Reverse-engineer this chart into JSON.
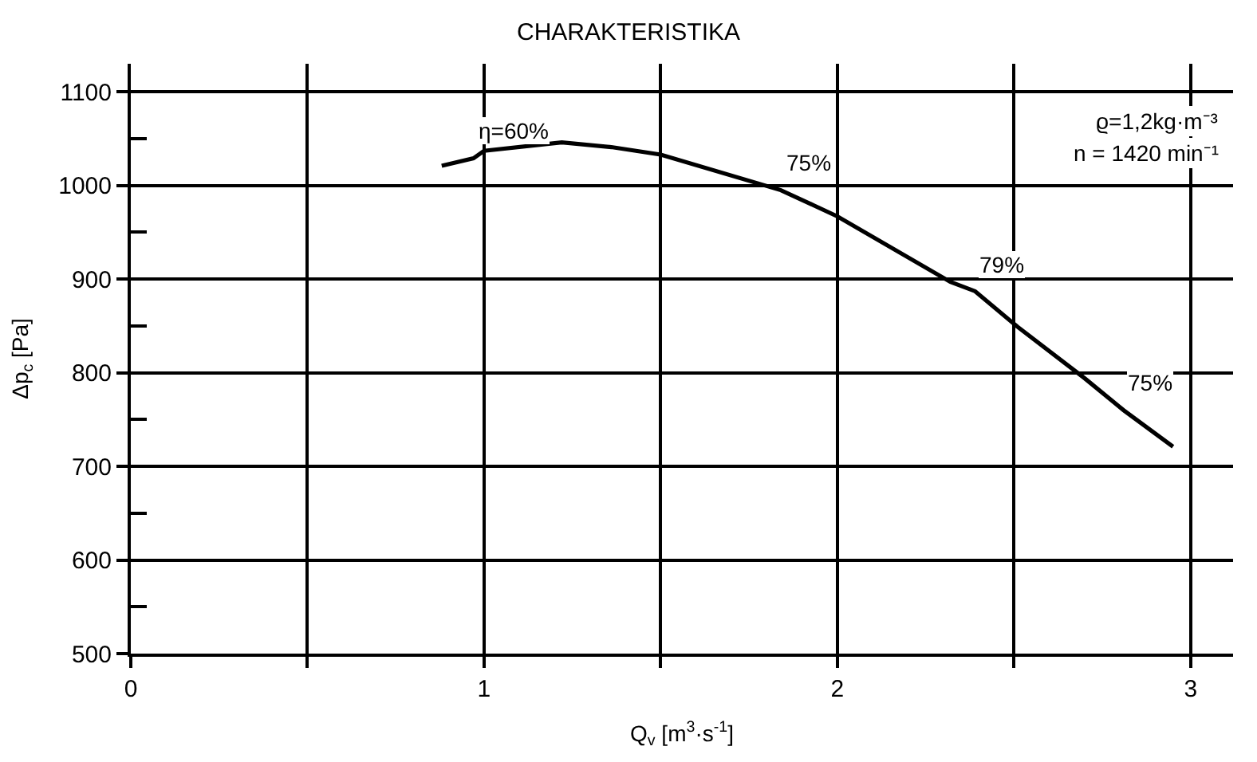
{
  "chart_data": {
    "type": "line",
    "title": "CHARAKTERISTIKA",
    "xlabel": "Q$_{v}$ [m$^{3}$·s$^{-1}$]",
    "ylabel": "Δp$_{c}$ [Pa]",
    "x": [
      0.88,
      0.97,
      1.0,
      1.22,
      1.36,
      1.5,
      1.84,
      2.0,
      2.32,
      2.39,
      2.51,
      2.7,
      2.81,
      2.95
    ],
    "series": [
      {
        "color": "#000000",
        "values": [
          1021,
          1029,
          1037,
          1046,
          1041,
          1033,
          995,
          967,
          897,
          887,
          849,
          794,
          760,
          721
        ]
      }
    ],
    "annotations": [
      {
        "text": "η=60%",
        "x": 0.97,
        "y": 1029
      },
      {
        "text": "75%",
        "x": 1.84,
        "y": 995
      },
      {
        "text": "79%",
        "x": 2.39,
        "y": 887
      },
      {
        "text": "75%",
        "x": 2.81,
        "y": 760
      },
      "ϱ=1,2kg·m⁻³",
      "n = 1420 min⁻¹"
    ],
    "xlim": [
      0,
      3.12
    ],
    "ylim": [
      500,
      1130
    ],
    "xticks": [
      0,
      {
        "value": 0.5,
        "label": null
      },
      1,
      {
        "value": 1.5,
        "label": null
      },
      2,
      {
        "value": 2.5,
        "label": null
      },
      3
    ],
    "yticks": [
      500,
      {
        "value": 550,
        "label": null
      },
      600,
      {
        "value": 650,
        "label": null
      },
      700,
      {
        "value": 750,
        "label": null
      },
      800,
      {
        "value": 850,
        "label": null
      },
      900,
      {
        "value": 950,
        "label": null
      },
      1000,
      {
        "value": 1050,
        "label": null
      },
      1100
    ],
    "grid": true,
    "marker": "none",
    "line_style": "solid",
    "legend": false
  }
}
